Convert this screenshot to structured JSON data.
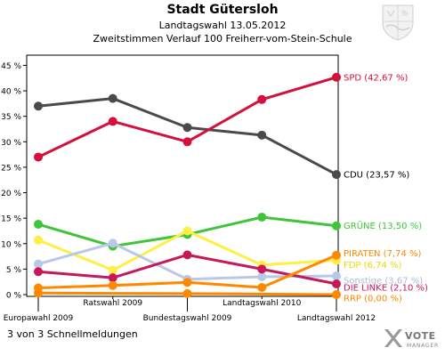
{
  "header": {
    "title": "Stadt Gütersloh",
    "subtitle": "Landtagswahl 13.05.2012",
    "subtitle2": "Zweitstimmen Verlauf 100 Freiherr-vom-Stein-Schule"
  },
  "footer": {
    "text": "3 von 3 Schnellmeldungen"
  },
  "branding": {
    "logo_word": "VOTE",
    "logo_sub": "MANAGER",
    "crest_icon": "nrw-crest-icon"
  },
  "chart_data": {
    "type": "line",
    "categories": [
      "Europawahl 2009",
      "Ratswahl 2009",
      "Bundestagswahl 2009",
      "Landtagswahl 2010",
      "Landtagswahl 2012"
    ],
    "ylim": [
      0,
      47
    ],
    "yticks": [
      0,
      5,
      10,
      15,
      20,
      25,
      30,
      35,
      40,
      45
    ],
    "ytick_labels": [
      "0 %",
      "5 %",
      "10 %",
      "15 %",
      "20 %",
      "25 %",
      "30 %",
      "35 %",
      "40 %",
      "45 %"
    ],
    "grid": false,
    "series": [
      {
        "name": "CDU",
        "label": "CDU (23,57 %)",
        "color": "#4a4a4a",
        "label_color": "#000000",
        "values": [
          37.0,
          38.5,
          32.8,
          31.3,
          23.57
        ]
      },
      {
        "name": "SPD",
        "label": "SPD (42,67 %)",
        "color": "#d4103c",
        "label_color": "#d4103c",
        "values": [
          27.0,
          34.0,
          30.0,
          38.3,
          42.67
        ]
      },
      {
        "name": "GRÜNE",
        "label": "GRÜNE (13,50 %)",
        "color": "#3fc53a",
        "label_color": "#3fc53a",
        "values": [
          13.8,
          9.5,
          11.8,
          15.2,
          13.5
        ]
      },
      {
        "name": "FDP",
        "label": "FDP (6,74 %)",
        "color": "#ffee44",
        "label_color": "#e8d800",
        "values": [
          10.7,
          4.8,
          12.5,
          5.8,
          6.74
        ]
      },
      {
        "name": "Sonstige",
        "label": "Sonstige (3,67 %)",
        "color": "#b8c8e8",
        "label_color": "#a8bce0",
        "values": [
          6.0,
          10.1,
          3.0,
          3.5,
          3.67
        ]
      },
      {
        "name": "DIE LINKE",
        "label": "DIE LINKE (2,10 %)",
        "color": "#c8185a",
        "label_color": "#c8185a",
        "values": [
          4.5,
          3.3,
          7.8,
          5.0,
          2.1
        ]
      },
      {
        "name": "PIRATEN",
        "label": "PIRATEN (7,74 %)",
        "color": "#ff8800",
        "label_color": "#ff8800",
        "values": [
          1.3,
          1.8,
          2.4,
          1.4,
          7.74
        ]
      },
      {
        "name": "RRP",
        "label": "RRP (0,00 %)",
        "color": "#ff8800",
        "label_color": "#ff8800",
        "values": [
          0.3,
          null,
          0.2,
          null,
          0.0
        ]
      }
    ]
  }
}
